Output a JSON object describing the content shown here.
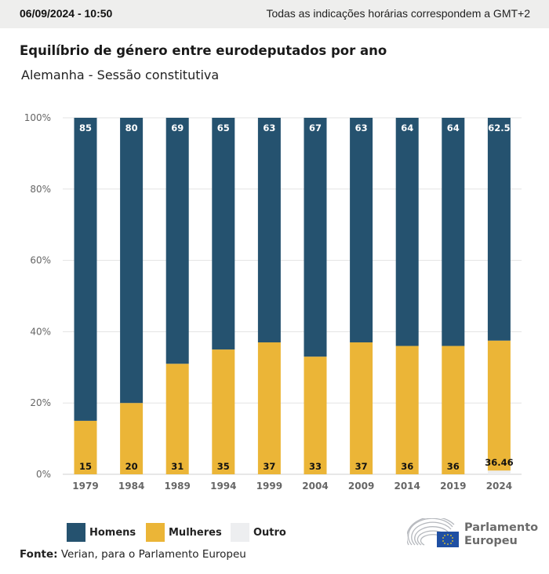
{
  "header": {
    "datetime": "06/09/2024 - 10:50",
    "timezone_note": "Todas as indicações horárias correspondem a GMT+2"
  },
  "title": "Equilíbrio de género entre eurodeputados por ano",
  "subtitle": "Alemanha - Sessão constitutiva",
  "colors": {
    "homens": "#25526f",
    "mulheres": "#ebb537",
    "outro": "#edeef0",
    "grid": "#e3e3e3",
    "axis_text": "#666666"
  },
  "chart_data": {
    "type": "bar",
    "stacked": true,
    "percent": true,
    "title": "Equilíbrio de género entre eurodeputados por ano",
    "subtitle": "Alemanha - Sessão constitutiva",
    "xlabel": "",
    "ylabel": "",
    "ylim": [
      0,
      100
    ],
    "yticks": [
      "0%",
      "20%",
      "40%",
      "60%",
      "80%",
      "100%"
    ],
    "grid": true,
    "legend_position": "bottom-left",
    "categories": [
      "1979",
      "1984",
      "1989",
      "1994",
      "1999",
      "2004",
      "2009",
      "2014",
      "2019",
      "2024"
    ],
    "series": [
      {
        "name": "Outro",
        "values": [
          0,
          0,
          0,
          0,
          0,
          0,
          0,
          0,
          0,
          1.04
        ],
        "labels": [
          "",
          "",
          "",
          "",
          "",
          "",
          "",
          "",
          "",
          ""
        ]
      },
      {
        "name": "Mulheres",
        "values": [
          15,
          20,
          31,
          35,
          37,
          33,
          37,
          36,
          36,
          36.46
        ],
        "labels": [
          "15",
          "20",
          "31",
          "35",
          "37",
          "33",
          "37",
          "36",
          "36",
          "36.46"
        ]
      },
      {
        "name": "Homens",
        "values": [
          85,
          80,
          69,
          65,
          63,
          67,
          63,
          64,
          64,
          62.5
        ],
        "labels": [
          "85",
          "80",
          "69",
          "65",
          "63",
          "67",
          "63",
          "64",
          "64",
          "62.5"
        ]
      }
    ]
  },
  "legend": [
    {
      "key": "homens",
      "label": "Homens"
    },
    {
      "key": "mulheres",
      "label": "Mulheres"
    },
    {
      "key": "outro",
      "label": "Outro"
    }
  ],
  "source": {
    "label": "Fonte:",
    "text": " Verian, para o Parlamento Europeu"
  },
  "logo": {
    "line1": "Parlamento",
    "line2": "Europeu"
  }
}
